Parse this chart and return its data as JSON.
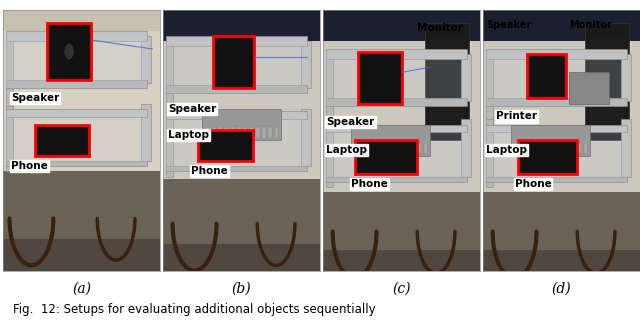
{
  "figsize": [
    6.4,
    3.26
  ],
  "dpi": 100,
  "background_color": "#ffffff",
  "text_color": "#000000",
  "panels": [
    "(a)",
    "(b)",
    "(c)",
    "(d)"
  ],
  "caption": "Fig.  12: Setups for evaluating additional objects sequentially",
  "caption_fontsize": 8.5,
  "label_fontsize": 10,
  "annotation_fontsize": 7.5,
  "wall_color": "#d6cfc0",
  "floor_color": "#7a7060",
  "desk_top_color": "#c0bdb8",
  "desk_frame_color": "#c8c8c8",
  "desk_leg_color": "#5a3a1a",
  "speaker_color": "#1a1a1a",
  "phone_color": "#111111",
  "laptop_color": "#888888",
  "monitor_color": "#222222",
  "printer_color": "#888888",
  "red_box_color": "#ff0000",
  "label_bg": "#ffffff",
  "num_panels": 4
}
